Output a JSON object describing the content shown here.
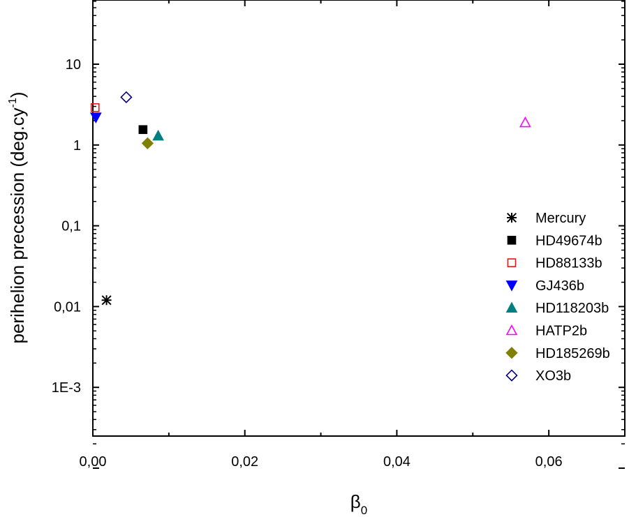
{
  "chart_data": {
    "type": "scatter",
    "xlabel": "β",
    "xlabel_sub": "0",
    "ylabel": "perihelion precession (deg.cy",
    "ylabel_sup": "-1",
    "ylabel_end": ")",
    "xlim": [
      0,
      0.07
    ],
    "ylim": [
      0.0001,
      100
    ],
    "yscale": "log",
    "x_ticks": [
      0,
      0.02,
      0.04,
      0.06
    ],
    "x_tick_labels": [
      "0,00",
      "0,02",
      "0,04",
      "0,06"
    ],
    "y_ticks": [
      0.001,
      0.01,
      0.1,
      1,
      10
    ],
    "y_tick_labels": [
      "1E-3",
      "0,01",
      "0,1",
      "1",
      "10"
    ],
    "legend_position": "right",
    "series": [
      {
        "name": "Mercury",
        "marker": "asterisk",
        "color": "#000000",
        "x": 0.0018,
        "y": 0.012
      },
      {
        "name": "HD49674b",
        "marker": "square-filled",
        "color": "#000000",
        "x": 0.0066,
        "y": 1.55
      },
      {
        "name": "HD88133b",
        "marker": "square-open",
        "color": "#ee1111",
        "x": 0.0003,
        "y": 2.9
      },
      {
        "name": "GJ436b",
        "marker": "triangle-down-filled",
        "color": "#0000ff",
        "x": 0.0004,
        "y": 2.2
      },
      {
        "name": "HD118203b",
        "marker": "triangle-up-filled",
        "color": "#008080",
        "x": 0.0086,
        "y": 1.3
      },
      {
        "name": "HATP2b",
        "marker": "triangle-up-open",
        "color": "#ff00ff",
        "x": 0.0569,
        "y": 1.9
      },
      {
        "name": "HD185269b",
        "marker": "diamond-filled",
        "color": "#808000",
        "x": 0.0072,
        "y": 1.05
      },
      {
        "name": "XO3b",
        "marker": "diamond-open",
        "color": "#000080",
        "x": 0.0044,
        "y": 3.9
      }
    ]
  }
}
